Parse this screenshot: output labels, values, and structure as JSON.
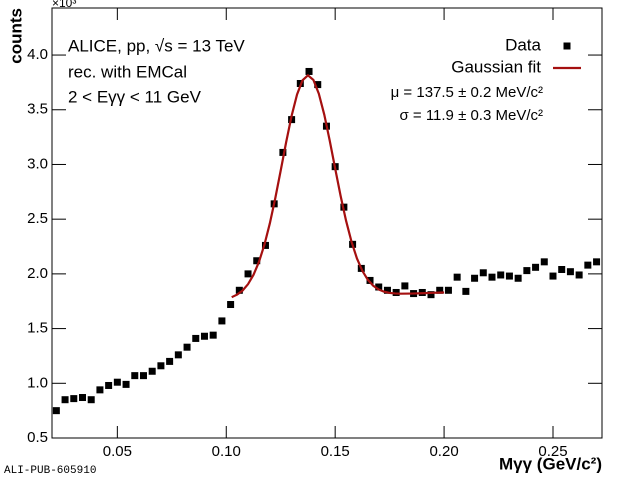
{
  "chart_data": {
    "type": "scatter",
    "y_scale_label": "×10³",
    "x_label": "Mγγ (GeV/c²)",
    "y_label": "counts",
    "annotations": [
      "ALICE, pp, √s = 13 TeV",
      "rec. with EMCal",
      "2 < Eγγ < 11 GeV"
    ],
    "fit_results": [
      "μ = 137.5 ± 0.2 MeV/c²",
      "σ = 11.9 ± 0.3 MeV/c²"
    ],
    "footer": "ALI-PUB-605910",
    "legend": "top-right",
    "xlim": [
      0.02,
      0.2725
    ],
    "ylim": [
      0.5,
      4.43
    ],
    "xticks": [
      {
        "value": 0.05,
        "label": "0.05"
      },
      {
        "value": 0.1,
        "label": "0.10"
      },
      0.15,
      {
        "value": 0.2,
        "label": "0.20"
      },
      0.25
    ],
    "yticks": [
      0.5,
      {
        "value": 1,
        "label": "1.0"
      },
      1.5,
      {
        "value": 2,
        "label": "2.0"
      },
      2.5,
      {
        "value": 3,
        "label": "3.0"
      },
      3.5,
      {
        "value": 4,
        "label": "4.0"
      }
    ],
    "series": [
      {
        "name": "Data",
        "type": "scatter",
        "marker": "square",
        "color": "#000000",
        "x": [
          0.022,
          0.026,
          0.03,
          0.034,
          0.038,
          0.042,
          0.046,
          0.05,
          0.054,
          0.058,
          0.062,
          0.066,
          0.07,
          0.074,
          0.078,
          0.082,
          0.086,
          0.09,
          0.094,
          0.098,
          0.102,
          0.106,
          0.11,
          0.114,
          0.118,
          0.122,
          0.126,
          0.13,
          0.134,
          0.138,
          0.142,
          0.146,
          0.15,
          0.154,
          0.158,
          0.162,
          0.166,
          0.17,
          0.174,
          0.178,
          0.182,
          0.186,
          0.19,
          0.194,
          0.198,
          0.202,
          0.206,
          0.21,
          0.214,
          0.218,
          0.222,
          0.226,
          0.23,
          0.234,
          0.238,
          0.242,
          0.246,
          0.25,
          0.254,
          0.258,
          0.262,
          0.266,
          0.27
        ],
        "values": [
          0.75,
          0.85,
          0.86,
          0.87,
          0.85,
          0.94,
          0.98,
          1.01,
          0.99,
          1.07,
          1.07,
          1.11,
          1.16,
          1.2,
          1.26,
          1.33,
          1.41,
          1.43,
          1.44,
          1.57,
          1.72,
          1.85,
          2.0,
          2.12,
          2.26,
          2.64,
          3.11,
          3.41,
          3.74,
          3.85,
          3.73,
          3.35,
          2.98,
          2.61,
          2.27,
          2.05,
          1.94,
          1.88,
          1.85,
          1.83,
          1.89,
          1.82,
          1.83,
          1.81,
          1.85,
          1.85,
          1.97,
          1.84,
          1.96,
          2.01,
          1.97,
          1.99,
          1.98,
          1.96,
          2.03,
          2.06,
          2.11,
          1.98,
          2.04,
          2.02,
          1.99,
          2.08,
          2.11
        ]
      },
      {
        "name": "Gaussian fit",
        "type": "line",
        "color": "#a51010",
        "x": [
          0.1025,
          0.105,
          0.1075,
          0.11,
          0.1125,
          0.115,
          0.1175,
          0.12,
          0.1225,
          0.125,
          0.1275,
          0.13,
          0.1325,
          0.135,
          0.1375,
          0.14,
          0.1425,
          0.145,
          0.1475,
          0.15,
          0.1525,
          0.155,
          0.1575,
          0.16,
          0.1625,
          0.165,
          0.1675,
          0.17,
          0.1725,
          0.175,
          0.1775,
          0.18,
          0.185,
          0.19,
          0.195,
          0.2
        ],
        "values": [
          1.787,
          1.811,
          1.848,
          1.906,
          1.991,
          2.109,
          2.265,
          2.461,
          2.691,
          2.945,
          3.204,
          3.444,
          3.64,
          3.769,
          3.815,
          3.773,
          3.647,
          3.455,
          3.218,
          2.963,
          2.713,
          2.486,
          2.294,
          2.141,
          2.027,
          1.946,
          1.891,
          1.857,
          1.837,
          1.826,
          1.821,
          1.819,
          1.82,
          1.823,
          1.827,
          1.83
        ]
      }
    ]
  }
}
